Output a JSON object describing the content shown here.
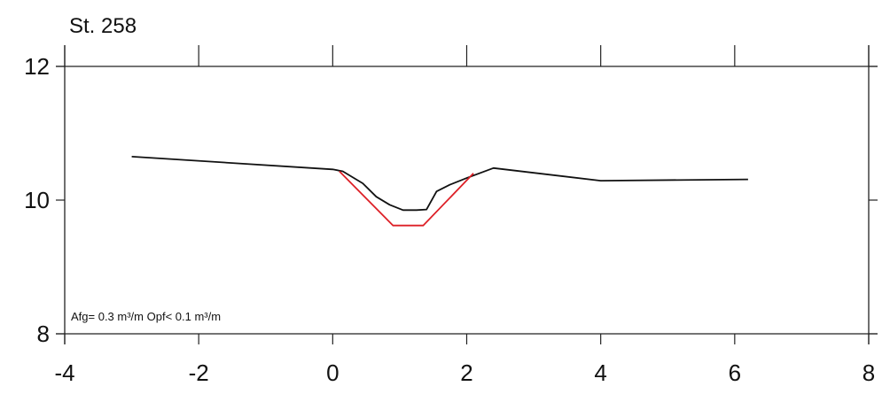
{
  "chart_data": {
    "type": "line",
    "title": "St. 258",
    "xlabel": "",
    "ylabel": "",
    "xlim": [
      -4,
      8
    ],
    "ylim": [
      8,
      12
    ],
    "x_ticks": [
      -4,
      -2,
      0,
      2,
      4,
      6,
      8
    ],
    "y_ticks": [
      8,
      10,
      12
    ],
    "x_tick_labels": [
      "-4",
      "-2",
      "0",
      "2",
      "4",
      "6",
      "8"
    ],
    "y_tick_labels": [
      "8",
      "10",
      "12"
    ],
    "grid": false,
    "annotation": "Afg= 0.3 m³/m  Opf< 0.1 m³/m",
    "series": [
      {
        "color": "#111111",
        "x": [
          -3.0,
          0.0,
          0.15,
          0.45,
          0.65,
          0.85,
          1.05,
          1.25,
          1.4,
          1.55,
          1.75,
          2.0,
          2.4,
          4.0,
          6.2
        ],
        "y": [
          10.65,
          10.46,
          10.43,
          10.25,
          10.05,
          9.93,
          9.85,
          9.85,
          9.86,
          10.13,
          10.23,
          10.33,
          10.48,
          10.29,
          10.31
        ]
      },
      {
        "color": "#dd1f26",
        "x": [
          0.1,
          0.9,
          1.35,
          2.1
        ],
        "y": [
          10.43,
          9.62,
          9.62,
          10.4
        ]
      }
    ]
  }
}
